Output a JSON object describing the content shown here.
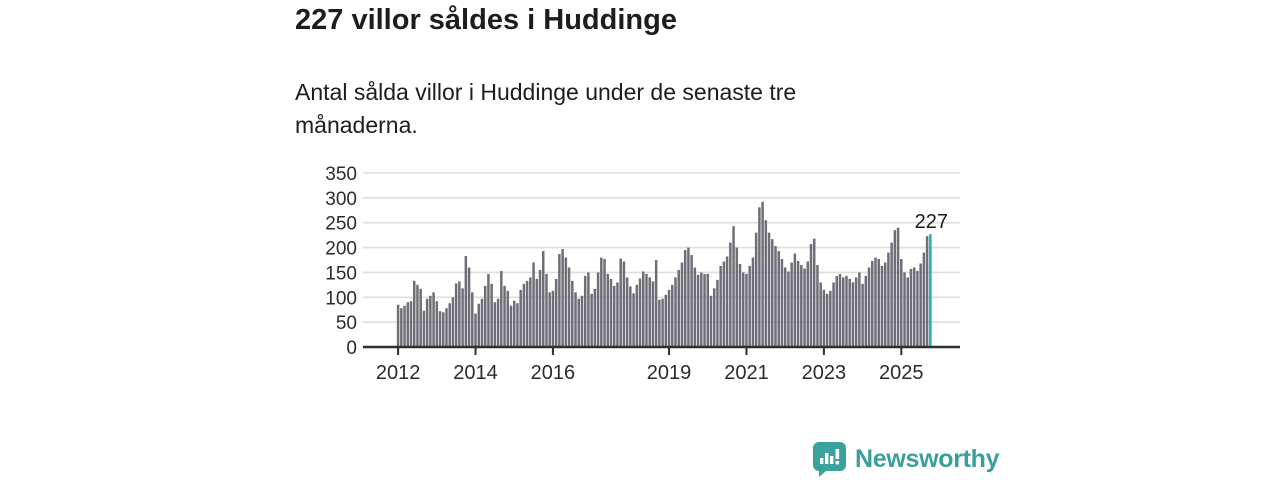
{
  "header": {
    "title": "227 villor såldes i Huddinge",
    "subtitle": "Antal sålda villor i Huddinge under de senaste tre månaderna."
  },
  "chart_data": {
    "type": "bar",
    "title": "227 villor såldes i Huddinge",
    "xlabel": "",
    "ylabel": "",
    "start_month": "2012-01",
    "end_month": "2025-10",
    "frequency": "monthly",
    "ylim": [
      0,
      350
    ],
    "yticks": [
      0,
      50,
      100,
      150,
      200,
      250,
      300,
      350
    ],
    "xticks": [
      2012,
      2014,
      2016,
      2019,
      2021,
      2023,
      2025
    ],
    "grid": "horizontal",
    "bar_color": "#6e6e77",
    "highlight_color": "#1ab2aa",
    "highlight_index": 165,
    "highlight_label": "227",
    "values": [
      85,
      78,
      83,
      90,
      92,
      133,
      125,
      117,
      73,
      97,
      103,
      110,
      92,
      72,
      70,
      78,
      88,
      100,
      128,
      132,
      118,
      183,
      160,
      110,
      67,
      87,
      97,
      123,
      147,
      127,
      90,
      97,
      153,
      123,
      113,
      83,
      93,
      88,
      115,
      127,
      133,
      140,
      170,
      137,
      155,
      193,
      147,
      110,
      113,
      137,
      187,
      197,
      180,
      160,
      133,
      110,
      97,
      103,
      143,
      150,
      107,
      117,
      150,
      180,
      177,
      147,
      137,
      123,
      130,
      178,
      172,
      140,
      122,
      108,
      125,
      138,
      152,
      147,
      140,
      132,
      175,
      95,
      97,
      105,
      115,
      125,
      140,
      155,
      170,
      195,
      200,
      185,
      160,
      145,
      150,
      147,
      147,
      103,
      118,
      135,
      163,
      172,
      182,
      210,
      243,
      200,
      167,
      150,
      147,
      163,
      180,
      230,
      281,
      292,
      255,
      230,
      217,
      203,
      193,
      177,
      160,
      152,
      170,
      188,
      173,
      165,
      158,
      172,
      207,
      218,
      165,
      130,
      115,
      107,
      113,
      130,
      143,
      147,
      140,
      143,
      137,
      130,
      140,
      150,
      127,
      143,
      160,
      173,
      180,
      177,
      163,
      170,
      190,
      210,
      235,
      240,
      177,
      150,
      140,
      157,
      160,
      153,
      168,
      190,
      223,
      227
    ]
  },
  "footer": {
    "brand": "Newsworthy",
    "brand_color": "#3a9f9a",
    "logo_icon": "speech-bubble-bar-chart"
  }
}
